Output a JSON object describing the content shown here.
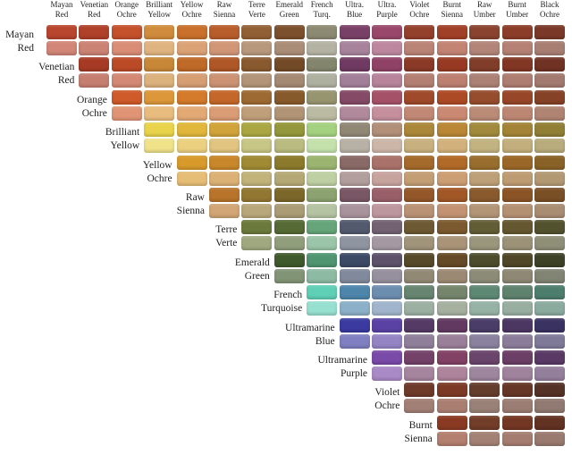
{
  "columns": [
    {
      "label": "Mayan\nRed",
      "color": "#b8452d"
    },
    {
      "label": "Venetian\nRed",
      "color": "#a63a24"
    },
    {
      "label": "Orange\nOchre",
      "color": "#cf5a2a"
    },
    {
      "label": "Brilliant\nYellow",
      "color": "#e8d34a"
    },
    {
      "label": "Yellow\nOchre",
      "color": "#d79a2b"
    },
    {
      "label": "Raw\nSienna",
      "color": "#b8742a"
    },
    {
      "label": "Terre\nVerte",
      "color": "#6b7a3c"
    },
    {
      "label": "Emerald\nGreen",
      "color": "#3f5a2c"
    },
    {
      "label": "French\nTurq.",
      "color": "#5fcfb6"
    },
    {
      "label": "Ultra.\nBlue",
      "color": "#3a3aa0"
    },
    {
      "label": "Ultra.\nPurple",
      "color": "#7a4aa8"
    },
    {
      "label": "Violet\nOchre",
      "color": "#6e3a2a"
    },
    {
      "label": "Burnt\nSienna",
      "color": "#8a3a22"
    },
    {
      "label": "Raw\nUmber",
      "color": "#5a4030"
    },
    {
      "label": "Burnt\nUmber",
      "color": "#5e3424"
    },
    {
      "label": "Black\nOchre",
      "color": "#3a2a22"
    }
  ],
  "rows": [
    {
      "label": "Mayan\nRed"
    },
    {
      "label": "Venetian\nRed"
    },
    {
      "label": "Orange\nOchre"
    },
    {
      "label": "Brilliant\nYellow"
    },
    {
      "label": "Yellow\nOchre"
    },
    {
      "label": "Raw\nSienna"
    },
    {
      "label": "Terre\nVerte"
    },
    {
      "label": "Emerald\nGreen"
    },
    {
      "label": "French\nTurquoise"
    },
    {
      "label": "Ultramarine\nBlue"
    },
    {
      "label": "Ultramarine\nPurple"
    },
    {
      "label": "Violet\nOchre"
    },
    {
      "label": "Burnt\nSienna"
    }
  ]
}
